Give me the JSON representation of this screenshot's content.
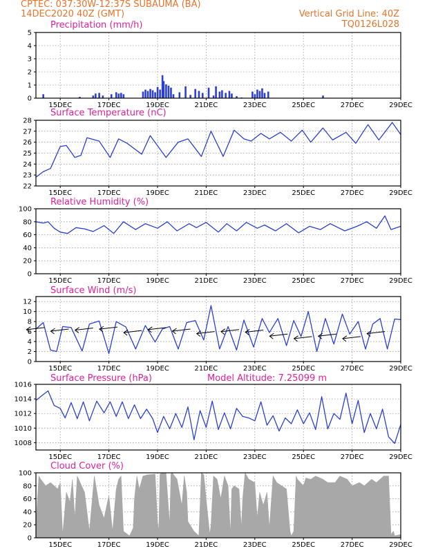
{
  "header": {
    "line1": "CPTEC:   037:30W-12:37S   SUBAUMA (BA)",
    "line2": "14DEC2020 40Z (GMT)",
    "right1": "Vertical Grid Line: 40Z",
    "right2": "TQ0126L028"
  },
  "colors": {
    "header": "#e8742a",
    "titles": "#e0209a",
    "line": "#2b3fd6",
    "bars": "#2b3fd6",
    "cloud": "#a8a8a8",
    "arrows": "#000000"
  },
  "x_axis": {
    "tick_labels": [
      "15DEC",
      "17DEC",
      "19DEC",
      "21DEC",
      "23DEC",
      "25DEC",
      "27DEC",
      "29DEC"
    ],
    "tick_days": [
      1,
      3,
      5,
      7,
      9,
      11,
      13,
      15
    ],
    "start_day": 0.0,
    "end_day": 15.0
  },
  "panels": {
    "precip": {
      "title": "Precipitation  (mm/h)",
      "yticks": [
        "0",
        "1",
        "2",
        "3",
        "4",
        "5"
      ],
      "ymin": 0,
      "ymax": 5
    },
    "temp": {
      "title": "Surface Temperature  (nC)",
      "yticks": [
        "22",
        "23",
        "24",
        "25",
        "26",
        "27",
        "28"
      ],
      "ymin": 22,
      "ymax": 28
    },
    "rh": {
      "title": "Relative Humidity  (%)",
      "yticks": [
        "0",
        "20",
        "40",
        "60",
        "80",
        "100"
      ],
      "ymin": 0,
      "ymax": 100
    },
    "wind": {
      "title": "Surface Wind  (m/s)",
      "yticks": [
        "0",
        "2",
        "4",
        "6",
        "8",
        "10",
        "12"
      ],
      "ymin": 0,
      "ymax": 13
    },
    "pressure": {
      "title": "Surface Pressure  (hPa)",
      "subtitle": "Model Altitude:  7.25099  m",
      "yticks": [
        "1008",
        "1010",
        "1012",
        "1014",
        "1016"
      ],
      "ymin": 1007,
      "ymax": 1016
    },
    "cloud": {
      "title": "Cloud Cover  (%)",
      "yticks": [
        "0",
        "20",
        "40",
        "60",
        "80",
        "100"
      ],
      "ymin": 0,
      "ymax": 100
    }
  },
  "chart_data": [
    {
      "type": "bar",
      "title": "Precipitation  (mm/h)",
      "x_unit": "days since 14DEC2020",
      "x": [
        0.3,
        1.8,
        2.35,
        2.45,
        2.6,
        2.75,
        3.1,
        3.3,
        3.4,
        3.5,
        3.6,
        4.4,
        4.5,
        4.6,
        4.7,
        4.8,
        4.9,
        5.0,
        5.1,
        5.2,
        5.25,
        5.35,
        5.45,
        5.55,
        5.65,
        5.9,
        6.15,
        6.35,
        6.55,
        6.7,
        6.85,
        7.1,
        7.3,
        7.4,
        7.55,
        7.65,
        7.8,
        7.95,
        8.05,
        8.25,
        8.45,
        8.9,
        9.0,
        9.1,
        9.2,
        9.3,
        9.4,
        9.55,
        11.8
      ],
      "values": [
        0.3,
        0.1,
        0.2,
        0.35,
        0.4,
        0.2,
        0.3,
        0.45,
        0.35,
        0.4,
        0.3,
        0.5,
        0.65,
        0.55,
        0.7,
        0.6,
        0.45,
        0.85,
        0.65,
        1.75,
        1.3,
        1.05,
        0.95,
        0.8,
        0.3,
        0.45,
        0.9,
        0.25,
        0.7,
        0.55,
        0.4,
        0.8,
        0.2,
        0.9,
        0.5,
        0.6,
        0.4,
        0.55,
        0.35,
        0.15,
        0.05,
        0.5,
        0.3,
        0.65,
        0.55,
        0.75,
        0.4,
        0.5,
        0.2
      ],
      "ylim": [
        0,
        5
      ]
    },
    {
      "type": "line",
      "title": "Surface Temperature  (nC)",
      "x_unit": "days since 14DEC2020",
      "x": [
        0.0,
        0.3,
        0.6,
        1.0,
        1.25,
        1.6,
        1.85,
        2.1,
        2.6,
        3.05,
        3.4,
        3.75,
        4.35,
        4.7,
        5.35,
        5.85,
        6.25,
        6.8,
        7.2,
        7.7,
        8.15,
        8.55,
        8.85,
        9.25,
        9.6,
        10.05,
        10.5,
        10.95,
        11.3,
        11.8,
        12.2,
        12.75,
        13.15,
        13.65,
        14.1,
        14.65,
        15.0
      ],
      "values": [
        22.8,
        23.3,
        23.6,
        25.6,
        25.7,
        24.6,
        24.8,
        26.4,
        26.1,
        24.6,
        26.3,
        25.9,
        24.9,
        26.6,
        24.6,
        26.0,
        26.3,
        24.7,
        27.0,
        24.7,
        27.1,
        26.3,
        26.1,
        26.8,
        26.3,
        26.9,
        26.1,
        27.1,
        26.0,
        27.3,
        26.2,
        26.9,
        25.9,
        27.6,
        26.2,
        27.8,
        26.7
      ],
      "ylim": [
        22,
        28
      ]
    },
    {
      "type": "line",
      "title": "Relative Humidity  (%)",
      "x_unit": "days since 14DEC2020",
      "x": [
        0.0,
        0.3,
        0.5,
        0.75,
        1.0,
        1.3,
        1.65,
        2.0,
        2.35,
        2.8,
        3.2,
        3.6,
        4.1,
        4.5,
        5.0,
        5.4,
        5.8,
        6.3,
        6.6,
        7.0,
        7.5,
        7.85,
        8.25,
        8.65,
        9.1,
        9.4,
        9.85,
        10.3,
        10.8,
        11.25,
        11.7,
        12.1,
        12.7,
        13.2,
        13.6,
        14.0,
        14.35,
        14.6,
        15.0
      ],
      "values": [
        80,
        78,
        80,
        70,
        64,
        62,
        71,
        69,
        65,
        74,
        62,
        80,
        68,
        77,
        70,
        80,
        66,
        77,
        71,
        79,
        64,
        77,
        66,
        79,
        70,
        75,
        66,
        77,
        63,
        73,
        68,
        77,
        66,
        73,
        80,
        70,
        89,
        68,
        73
      ],
      "ylim": [
        0,
        100
      ]
    },
    {
      "type": "line",
      "title": "Surface Wind  (m/s)",
      "x_unit": "days since 14DEC2020",
      "x": [
        0.0,
        0.3,
        0.6,
        0.85,
        1.1,
        1.45,
        1.9,
        2.2,
        2.6,
        3.0,
        3.3,
        3.7,
        4.1,
        4.5,
        4.9,
        5.2,
        5.5,
        5.85,
        6.2,
        6.55,
        6.9,
        7.2,
        7.55,
        7.9,
        8.25,
        8.55,
        8.95,
        9.3,
        9.6,
        9.95,
        10.3,
        10.6,
        10.9,
        11.2,
        11.55,
        11.9,
        12.25,
        12.6,
        12.9,
        13.25,
        13.55,
        13.85,
        14.15,
        14.45,
        14.75,
        15.0
      ],
      "values": [
        6.5,
        7.8,
        2.3,
        2.0,
        7.0,
        6.8,
        2.1,
        7.5,
        8.1,
        1.6,
        8.0,
        6.9,
        2.5,
        7.2,
        3.9,
        6.5,
        7.0,
        2.5,
        7.8,
        8.2,
        4.3,
        11.2,
        2.5,
        7.0,
        2.3,
        8.3,
        2.9,
        8.6,
        5.8,
        8.6,
        3.2,
        8.2,
        5.0,
        10.0,
        2.0,
        8.6,
        3.5,
        9.5,
        5.5,
        8.0,
        2.5,
        7.5,
        8.6,
        2.5,
        8.5,
        8.4
      ],
      "ylim": [
        0,
        13
      ],
      "arrows": {
        "x": [
          0.35,
          1.35,
          2.35,
          3.35,
          4.35,
          5.35,
          6.35,
          7.35,
          8.35,
          9.35,
          10.35,
          11.35,
          12.35,
          13.35,
          14.35
        ],
        "speed": [
          6.8,
          6.5,
          6.7,
          6.9,
          6.2,
          6.8,
          6.5,
          6.0,
          6.4,
          6.3,
          5.5,
          5.0,
          5.5,
          5.0,
          6.0
        ]
      }
    },
    {
      "type": "line",
      "title": "Surface Pressure  (hPa)",
      "x_unit": "days since 14DEC2020",
      "x": [
        0.0,
        0.3,
        0.5,
        0.75,
        1.0,
        1.2,
        1.45,
        1.7,
        1.95,
        2.2,
        2.5,
        2.8,
        3.05,
        3.3,
        3.55,
        3.8,
        4.05,
        4.3,
        4.55,
        4.8,
        5.0,
        5.25,
        5.5,
        5.75,
        6.0,
        6.25,
        6.5,
        6.75,
        7.0,
        7.25,
        7.5,
        7.75,
        8.0,
        8.25,
        8.5,
        8.75,
        9.0,
        9.25,
        9.5,
        9.75,
        10.0,
        10.25,
        10.5,
        10.75,
        11.0,
        11.25,
        11.5,
        11.75,
        12.0,
        12.25,
        12.5,
        12.75,
        13.0,
        13.25,
        13.5,
        13.75,
        14.0,
        14.25,
        14.5,
        14.75,
        15.0
      ],
      "values": [
        1013.8,
        1014.6,
        1015.1,
        1013.1,
        1012.7,
        1011.4,
        1013.5,
        1011.3,
        1013.6,
        1011.0,
        1013.7,
        1012.1,
        1013.6,
        1011.6,
        1013.6,
        1011.3,
        1013.2,
        1011.3,
        1012.6,
        1011.3,
        1009.4,
        1011.6,
        1009.9,
        1012.0,
        1010.1,
        1012.9,
        1008.4,
        1012.4,
        1010.1,
        1013.7,
        1009.8,
        1012.1,
        1009.9,
        1012.7,
        1011.6,
        1011.4,
        1011.0,
        1013.6,
        1010.4,
        1011.7,
        1009.6,
        1011.4,
        1010.6,
        1012.5,
        1010.6,
        1012.1,
        1009.8,
        1014.3,
        1009.9,
        1012.0,
        1011.2,
        1014.8,
        1010.6,
        1013.8,
        1009.4,
        1012.0,
        1009.9,
        1012.6,
        1008.8,
        1007.9,
        1010.5
      ],
      "ylim": [
        1007,
        1016
      ]
    },
    {
      "type": "area",
      "title": "Cloud Cover  (%)",
      "x_unit": "days since 14DEC2020",
      "x": [
        0.0,
        0.12,
        0.2,
        0.4,
        0.6,
        0.9,
        1.0,
        1.1,
        1.25,
        1.4,
        1.5,
        1.6,
        1.7,
        2.0,
        2.2,
        2.4,
        2.6,
        2.8,
        3.0,
        3.15,
        3.3,
        3.4,
        3.5,
        3.6,
        3.85,
        4.0,
        4.05,
        4.15,
        4.25,
        4.4,
        4.6,
        4.9,
        5.0,
        5.05,
        5.1,
        5.2,
        5.35,
        5.5,
        5.55,
        5.6,
        5.8,
        6.0,
        6.1,
        6.2,
        6.25,
        6.5,
        6.7,
        6.8,
        6.9,
        7.05,
        7.15,
        7.2,
        7.3,
        7.45,
        7.6,
        7.75,
        7.9,
        8.0,
        8.05,
        8.15,
        8.35,
        8.45,
        8.5,
        8.6,
        8.75,
        9.0,
        9.1,
        9.2,
        9.35,
        9.5,
        9.6,
        9.75,
        9.9,
        10.1,
        10.3,
        10.45,
        10.5,
        10.6,
        10.7,
        10.75,
        11.0,
        11.1,
        11.3,
        11.5,
        11.8,
        12.0,
        12.3,
        12.5,
        12.8,
        13.0,
        13.3,
        13.5,
        13.8,
        14.0,
        14.3,
        14.5,
        14.6,
        14.7,
        14.75,
        15.0
      ],
      "values": [
        20,
        95,
        90,
        80,
        85,
        75,
        85,
        5,
        70,
        55,
        90,
        30,
        95,
        70,
        10,
        95,
        50,
        30,
        65,
        10,
        75,
        90,
        95,
        10,
        3,
        15,
        60,
        95,
        75,
        95,
        97,
        98,
        25,
        10,
        98,
        100,
        99,
        20,
        98,
        100,
        90,
        50,
        95,
        70,
        25,
        10,
        3,
        100,
        97,
        40,
        5,
        20,
        95,
        90,
        60,
        95,
        80,
        5,
        75,
        80,
        75,
        15,
        60,
        100,
        90,
        85,
        30,
        70,
        50,
        70,
        15,
        95,
        85,
        80,
        75,
        10,
        3,
        10,
        95,
        90,
        80,
        92,
        90,
        95,
        90,
        85,
        85,
        95,
        90,
        80,
        85,
        80,
        90,
        85,
        95,
        95,
        5,
        10,
        3,
        5
      ],
      "ylim": [
        0,
        100
      ]
    }
  ]
}
